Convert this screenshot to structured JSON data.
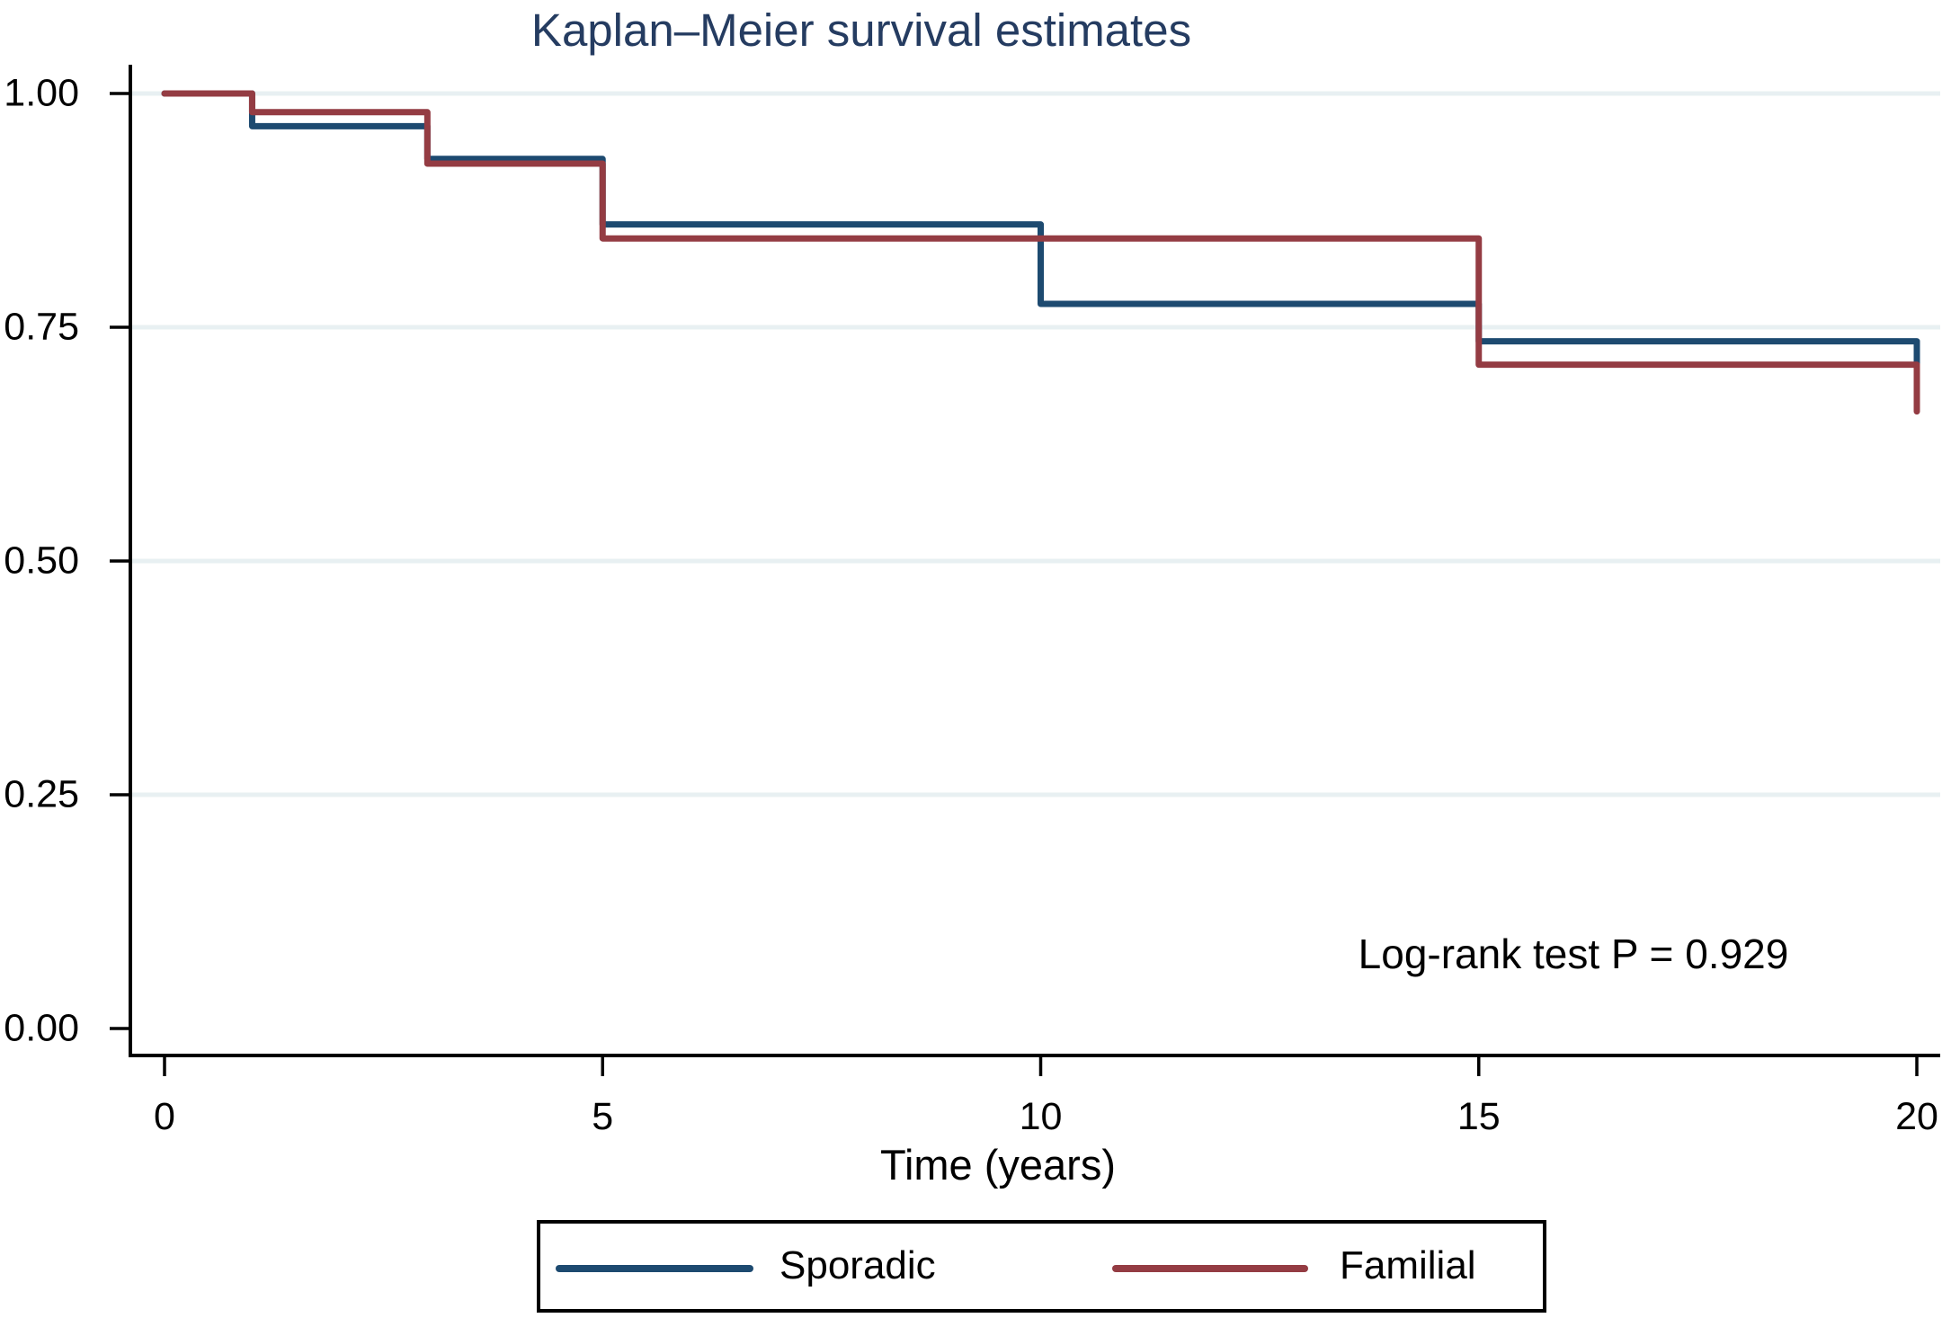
{
  "chart_data": {
    "type": "line",
    "subtype": "kaplan-meier-step",
    "title": "Kaplan–Meier survival estimates",
    "xlabel": "Time (years)",
    "ylabel": "",
    "xlim": [
      0,
      20
    ],
    "ylim": [
      0,
      1
    ],
    "xticks": {
      "values": [
        0,
        5,
        10,
        15,
        20
      ],
      "labels": [
        "0",
        "5",
        "10",
        "15",
        "20"
      ]
    },
    "yticks": {
      "values": [
        1.0,
        0.75,
        0.5,
        0.25,
        0.0
      ],
      "labels": [
        "1.00",
        "0.75",
        "0.50",
        "0.25",
        "0.00"
      ]
    },
    "grid": {
      "show": true,
      "at": [
        1.0,
        0.75,
        0.5,
        0.25
      ]
    },
    "annotation": "Log-rank test P = 0.929",
    "legend": {
      "position": "bottom",
      "entries": [
        "Sporadic",
        "Familial"
      ]
    },
    "colors": {
      "sporadic": "#1d4a70",
      "familial": "#943c43",
      "title": "#253c61",
      "grid": "#e8f0f2",
      "axis": "#000000"
    },
    "series": [
      {
        "name": "Sporadic",
        "color_key": "sporadic",
        "steps": [
          {
            "t": 0,
            "s": 1.0
          },
          {
            "t": 1,
            "s": 0.965
          },
          {
            "t": 3,
            "s": 0.93
          },
          {
            "t": 5,
            "s": 0.86
          },
          {
            "t": 10,
            "s": 0.775
          },
          {
            "t": 15,
            "s": 0.735
          },
          {
            "t": 20,
            "s": 0.71
          }
        ]
      },
      {
        "name": "Familial",
        "color_key": "familial",
        "steps": [
          {
            "t": 0,
            "s": 1.0
          },
          {
            "t": 1,
            "s": 0.98
          },
          {
            "t": 3,
            "s": 0.925
          },
          {
            "t": 5,
            "s": 0.845
          },
          {
            "t": 15,
            "s": 0.71
          },
          {
            "t": 20,
            "s": 0.66
          }
        ]
      }
    ]
  }
}
